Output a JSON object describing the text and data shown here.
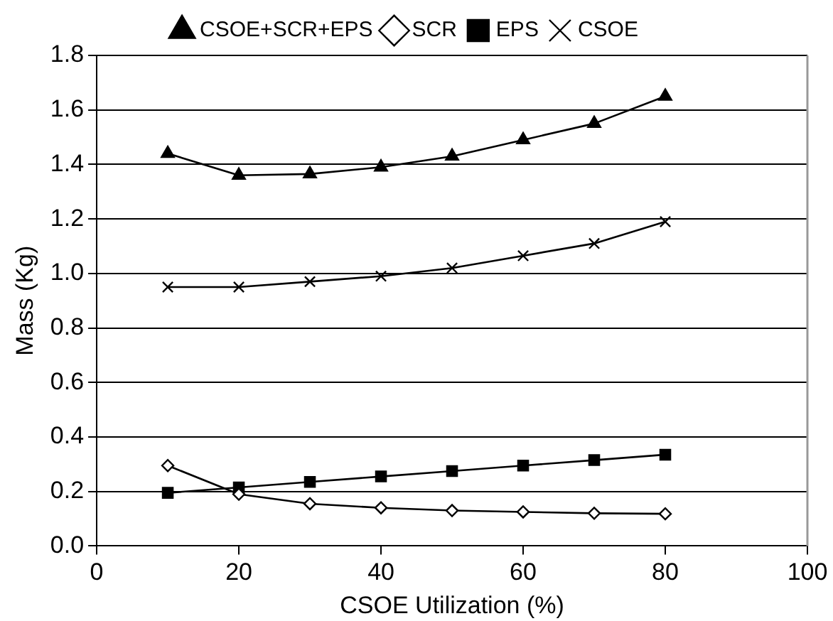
{
  "chart_data": {
    "type": "line",
    "xlabel": "CSOE Utilization (%)",
    "ylabel": "Mass (Kg)",
    "x": [
      10,
      20,
      30,
      40,
      50,
      60,
      70,
      80
    ],
    "xlim": [
      0,
      100
    ],
    "xticks": [
      0,
      20,
      40,
      60,
      80,
      100
    ],
    "ylim": [
      0,
      1.8
    ],
    "yticks": [
      {
        "value": 0,
        "label": "0.0"
      },
      {
        "value": 0.2,
        "label": "0.2"
      },
      {
        "value": 0.4,
        "label": "0.4"
      },
      {
        "value": 0.6,
        "label": "0.6"
      },
      {
        "value": 0.8,
        "label": "0.8"
      },
      {
        "value": 1.0,
        "label": "1.0"
      },
      {
        "value": 1.2,
        "label": "1.2"
      },
      {
        "value": 1.4,
        "label": "1.4"
      },
      {
        "value": 1.6,
        "label": "1.6"
      },
      {
        "value": 1.8,
        "label": "1.8"
      }
    ],
    "grid": "y",
    "legend": "top",
    "line_style": "solid",
    "series": [
      {
        "name": "CSOE+SCR+EPS",
        "color": "#000000",
        "marker": "triangle",
        "values": [
          1.44,
          1.36,
          1.365,
          1.39,
          1.43,
          1.49,
          1.55,
          1.65
        ]
      },
      {
        "name": "SCR",
        "color": "#000000",
        "marker": "diamond",
        "values": [
          0.295,
          0.19,
          0.155,
          0.14,
          0.13,
          0.125,
          0.12,
          0.118
        ]
      },
      {
        "name": "EPS",
        "color": "#000000",
        "marker": "square",
        "values": [
          0.195,
          0.215,
          0.235,
          0.255,
          0.275,
          0.295,
          0.315,
          0.335
        ]
      },
      {
        "name": "CSOE",
        "color": "#000000",
        "marker": "cross",
        "values": [
          0.95,
          0.95,
          0.97,
          0.99,
          1.02,
          1.065,
          1.11,
          1.19
        ]
      }
    ]
  }
}
